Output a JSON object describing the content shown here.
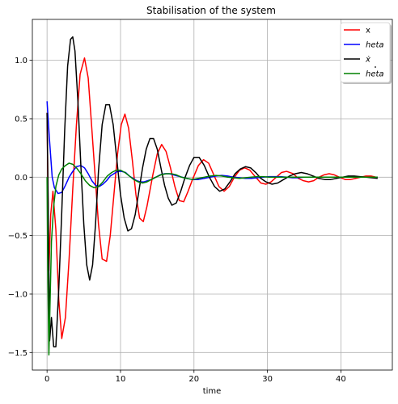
{
  "chart_data": {
    "type": "line",
    "title": "Stabilisation of the system",
    "xlabel": "time",
    "ylabel": "",
    "xlim": [
      -2,
      47
    ],
    "ylim": [
      -1.65,
      1.35
    ],
    "xticks": [
      0,
      10,
      20,
      30,
      40
    ],
    "xtick_labels": [
      "0",
      "10",
      "20",
      "30",
      "40"
    ],
    "yticks": [
      -1.5,
      -1.0,
      -0.5,
      0.0,
      0.5,
      1.0
    ],
    "ytick_labels": [
      "−1.5",
      "−1.0",
      "−0.5",
      "0.0",
      "0.5",
      "1.0"
    ],
    "grid": true,
    "legend_position": "top-right",
    "series": [
      {
        "name": "x",
        "color": "#ff0000",
        "x": [
          0,
          0.25,
          0.5,
          0.8,
          1.2,
          1.6,
          2.0,
          2.5,
          3.0,
          3.5,
          4.0,
          4.5,
          5.1,
          5.6,
          6.0,
          6.5,
          7.0,
          7.5,
          8.1,
          8.6,
          9.1,
          9.6,
          10.1,
          10.6,
          11.1,
          11.6,
          12.1,
          12.6,
          13.1,
          13.6,
          14.4,
          15.0,
          15.6,
          16.2,
          16.8,
          17.4,
          18.0,
          18.6,
          19.2,
          19.8,
          20.6,
          21.3,
          22.0,
          22.7,
          23.4,
          24.1,
          24.8,
          25.5,
          26.2,
          26.9,
          27.6,
          28.4,
          29.1,
          29.8,
          30.5,
          31.2,
          31.9,
          32.6,
          33.5,
          34.2,
          34.9,
          35.6,
          36.3,
          37.0,
          37.7,
          38.4,
          39.1,
          39.8,
          40.6,
          41.3,
          42.0,
          42.7,
          43.4,
          44.1,
          44.8,
          45.0
        ],
        "y": [
          0.55,
          -0.8,
          -0.32,
          -0.12,
          -0.45,
          -1.05,
          -1.38,
          -1.2,
          -0.7,
          -0.1,
          0.45,
          0.88,
          1.02,
          0.85,
          0.5,
          0.05,
          -0.4,
          -0.7,
          -0.72,
          -0.5,
          -0.15,
          0.2,
          0.45,
          0.54,
          0.42,
          0.15,
          -0.15,
          -0.35,
          -0.38,
          -0.25,
          0.02,
          0.2,
          0.28,
          0.22,
          0.08,
          -0.08,
          -0.2,
          -0.21,
          -0.12,
          -0.02,
          0.1,
          0.15,
          0.12,
          0.02,
          -0.08,
          -0.12,
          -0.08,
          0.0,
          0.06,
          0.08,
          0.06,
          0.0,
          -0.05,
          -0.06,
          -0.04,
          0.0,
          0.04,
          0.05,
          0.03,
          -0.01,
          -0.03,
          -0.04,
          -0.03,
          0.0,
          0.02,
          0.03,
          0.02,
          0.0,
          -0.02,
          -0.02,
          -0.01,
          0.0,
          0.01,
          0.01,
          0.0,
          0.0
        ]
      },
      {
        "name": "heta",
        "color": "#0000ff",
        "x": [
          0,
          0.3,
          0.7,
          1.0,
          1.5,
          2.0,
          2.5,
          3.0,
          3.5,
          4.0,
          4.6,
          5.1,
          5.6,
          6.1,
          6.6,
          7.1,
          7.6,
          8.1,
          8.6,
          9.1,
          9.6,
          10.1,
          10.7,
          11.2,
          11.7,
          12.2,
          12.7,
          13.2,
          13.7,
          14.2,
          14.8,
          15.4,
          16.0,
          16.6,
          17.2,
          17.8,
          18.4,
          19.0,
          19.8,
          20.6,
          21.4,
          22.2,
          23.0,
          23.8,
          24.6,
          25.4,
          26.2,
          27.0,
          27.8,
          28.6,
          29.4,
          30.2,
          31.0,
          31.8,
          32.6,
          33.4,
          34.2,
          35.0,
          35.8,
          36.6,
          37.4,
          38.2,
          39.0,
          39.8,
          40.6,
          41.4,
          42.2,
          43.0,
          43.8,
          44.6,
          45.0
        ],
        "y": [
          0.65,
          0.35,
          0.0,
          -0.09,
          -0.14,
          -0.13,
          -0.07,
          0.0,
          0.05,
          0.09,
          0.1,
          0.08,
          0.03,
          -0.03,
          -0.07,
          -0.08,
          -0.06,
          -0.03,
          0.01,
          0.03,
          0.05,
          0.05,
          0.04,
          0.01,
          -0.01,
          -0.03,
          -0.04,
          -0.04,
          -0.03,
          -0.02,
          0.0,
          0.02,
          0.03,
          0.03,
          0.02,
          0.01,
          0.0,
          -0.01,
          -0.02,
          -0.02,
          -0.01,
          0.0,
          0.01,
          0.015,
          0.01,
          0.0,
          -0.005,
          -0.01,
          -0.01,
          -0.005,
          0.0,
          0.005,
          0.005,
          0.005,
          0.0,
          -0.005,
          -0.005,
          0.0,
          0.0,
          0.0,
          0.0,
          0.0,
          0.0,
          0.0,
          0.0,
          0.0,
          0.0,
          0.0,
          0.0,
          0.0,
          0.0
        ]
      },
      {
        "name": "\\dot{x}",
        "color": "#000000",
        "x": [
          0,
          0.15,
          0.35,
          0.6,
          0.9,
          1.2,
          1.6,
          2.0,
          2.4,
          2.8,
          3.2,
          3.5,
          3.8,
          4.2,
          4.6,
          5.0,
          5.4,
          5.8,
          6.2,
          6.6,
          7.0,
          7.5,
          8.0,
          8.5,
          9.0,
          9.5,
          10.0,
          10.5,
          11.0,
          11.5,
          12.0,
          12.5,
          13.0,
          13.5,
          14.0,
          14.5,
          15.0,
          15.5,
          16.0,
          16.5,
          17.0,
          17.6,
          18.2,
          18.8,
          19.4,
          20.0,
          20.7,
          21.4,
          22.1,
          22.8,
          23.5,
          24.2,
          24.9,
          25.6,
          26.3,
          27.0,
          27.7,
          28.4,
          29.1,
          29.8,
          30.6,
          31.4,
          32.2,
          33.0,
          33.8,
          34.6,
          35.4,
          36.2,
          37.0,
          37.8,
          38.6,
          39.4,
          40.2,
          41.0,
          41.8,
          42.6,
          43.4,
          44.2,
          45.0
        ],
        "y": [
          0.55,
          -0.2,
          -1.4,
          -1.2,
          -1.45,
          -1.45,
          -0.95,
          -0.3,
          0.4,
          0.95,
          1.18,
          1.2,
          1.08,
          0.65,
          0.1,
          -0.4,
          -0.75,
          -0.88,
          -0.75,
          -0.4,
          0.05,
          0.45,
          0.62,
          0.62,
          0.45,
          0.15,
          -0.15,
          -0.35,
          -0.46,
          -0.44,
          -0.32,
          -0.12,
          0.08,
          0.24,
          0.33,
          0.33,
          0.24,
          0.08,
          -0.07,
          -0.18,
          -0.24,
          -0.22,
          -0.12,
          0.0,
          0.1,
          0.17,
          0.17,
          0.1,
          0.0,
          -0.08,
          -0.12,
          -0.1,
          -0.04,
          0.03,
          0.07,
          0.09,
          0.08,
          0.04,
          -0.01,
          -0.04,
          -0.06,
          -0.05,
          -0.02,
          0.01,
          0.03,
          0.04,
          0.03,
          0.01,
          -0.01,
          -0.02,
          -0.02,
          -0.01,
          0.0,
          0.01,
          0.01,
          0.005,
          0.0,
          -0.005,
          -0.01
        ]
      },
      {
        "name": "\\dot{heta}",
        "color": "#008000",
        "x": [
          0,
          0.1,
          0.25,
          0.4,
          0.6,
          0.9,
          1.2,
          1.6,
          2.0,
          2.5,
          3.0,
          3.5,
          4.0,
          4.6,
          5.2,
          5.8,
          6.4,
          7.0,
          7.6,
          8.2,
          8.8,
          9.4,
          10.0,
          10.6,
          11.2,
          11.8,
          12.4,
          13.0,
          13.6,
          14.2,
          14.8,
          15.5,
          16.2,
          16.9,
          17.6,
          18.3,
          19.0,
          19.8,
          20.6,
          21.4,
          22.2,
          23.0,
          23.8,
          24.6,
          25.4,
          26.2,
          27.0,
          27.8,
          28.6,
          29.4,
          30.2,
          31.0,
          31.8,
          32.6,
          33.4,
          34.2,
          35.0,
          35.8,
          36.6,
          37.4,
          38.2,
          39.0,
          39.8,
          40.6,
          41.4,
          42.2,
          43.0,
          43.8,
          44.6,
          45.0
        ],
        "y": [
          0.0,
          -0.8,
          -1.52,
          -1.1,
          -0.55,
          -0.25,
          -0.08,
          0.02,
          0.07,
          0.1,
          0.12,
          0.11,
          0.08,
          0.03,
          -0.03,
          -0.07,
          -0.09,
          -0.08,
          -0.04,
          0.01,
          0.04,
          0.06,
          0.06,
          0.04,
          0.01,
          -0.02,
          -0.04,
          -0.05,
          -0.04,
          -0.02,
          0.0,
          0.02,
          0.03,
          0.03,
          0.02,
          0.0,
          -0.01,
          -0.02,
          -0.01,
          0.0,
          0.01,
          0.015,
          0.01,
          0.0,
          -0.005,
          -0.01,
          -0.005,
          0.0,
          0.005,
          0.005,
          0.0,
          0.0,
          0.0,
          0.0,
          0.0,
          0.0,
          0.0,
          0.0,
          0.0,
          0.0,
          0.0,
          0.0,
          0.0,
          0.0,
          0.0,
          0.0,
          0.0,
          0.0,
          0.0,
          0.0
        ]
      }
    ],
    "legend": [
      {
        "label": "x",
        "style": "normal",
        "color": "#ff0000"
      },
      {
        "label": "heta",
        "style": "italic",
        "color": "#0000ff"
      },
      {
        "label": "ẋ",
        "style": "italic",
        "color": "#000000"
      },
      {
        "label": "heta",
        "style": "italic",
        "color": "#008000",
        "overdot": true
      }
    ]
  }
}
